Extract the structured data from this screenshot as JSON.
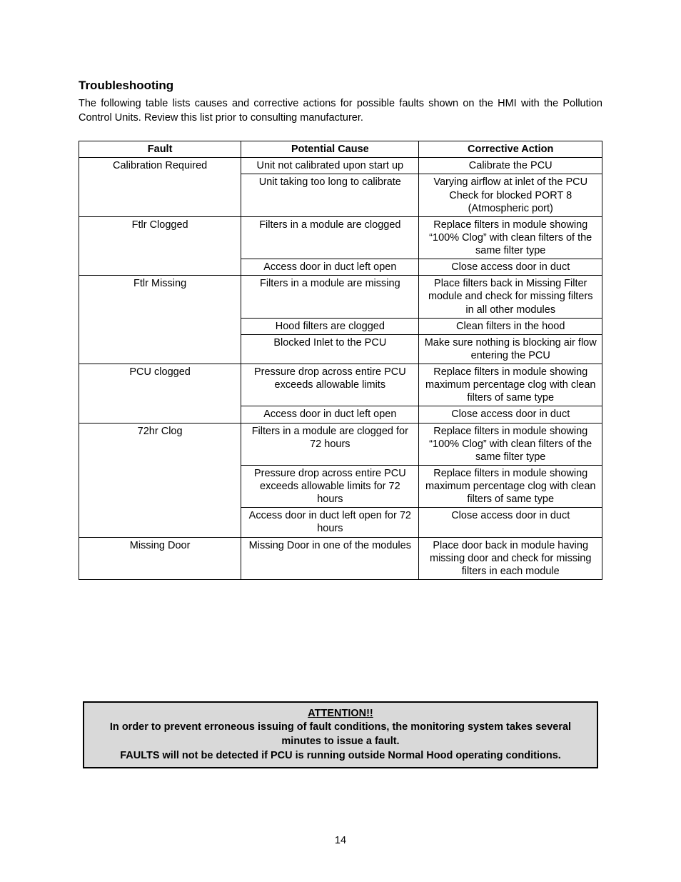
{
  "heading": "Troubleshooting",
  "intro": "The following table lists causes and corrective actions for possible faults shown on the HMI with the Pollution Control Units.  Review this list prior to consulting manufacturer.",
  "table": {
    "headers": {
      "fault": "Fault",
      "cause": "Potential Cause",
      "action": "Corrective Action"
    },
    "rows": [
      {
        "fault": "Calibration Required",
        "fault_rowspan": 2,
        "cause": "Unit not calibrated upon start up",
        "action": "Calibrate the PCU",
        "pad": true
      },
      {
        "cause": "Unit taking too long to calibrate",
        "action": "Varying airflow at inlet of the PCU Check for blocked PORT 8 (Atmospheric port)"
      },
      {
        "fault": "Ftlr Clogged",
        "fault_rowspan": 2,
        "cause": "Filters in a module are clogged",
        "action": "Replace filters in module showing “100% Clog” with clean filters of the same filter type"
      },
      {
        "cause": "Access door in duct left open",
        "action": "Close access door in duct"
      },
      {
        "fault": "Ftlr Missing",
        "fault_rowspan": 3,
        "cause": "Filters in a module are missing",
        "action": "Place filters back in Missing Filter module and check for missing filters in all other modules",
        "pad": true
      },
      {
        "cause": "Hood filters are clogged",
        "action": "Clean filters in the hood",
        "pad": true
      },
      {
        "cause": "Blocked Inlet to the PCU",
        "action": "Make sure nothing is blocking air flow entering the PCU"
      },
      {
        "fault": "PCU clogged",
        "fault_rowspan": 2,
        "cause": "Pressure drop across entire PCU exceeds allowable limits",
        "action": "Replace filters in module showing maximum percentage clog with clean filters of same type"
      },
      {
        "cause": "Access door in duct left open",
        "action": "Close access door in duct"
      },
      {
        "fault": "72hr Clog",
        "fault_rowspan": 3,
        "cause": "Filters in a module are clogged for 72 hours",
        "action": "Replace filters in module showing “100% Clog” with clean filters of the same filter type"
      },
      {
        "cause": "Pressure drop across entire PCU exceeds allowable limits for 72 hours",
        "action": "Replace filters in module showing maximum percentage clog with clean filters of same type"
      },
      {
        "cause": "Access door in duct left open for 72 hours",
        "action": "Close access door in duct"
      },
      {
        "fault": "Missing Door",
        "fault_rowspan": 1,
        "cause": "Missing Door in one of the modules",
        "action": "Place door back in module having missing door and check for missing filters in each module"
      }
    ]
  },
  "attention": {
    "title": "ATTENTION!!",
    "line1": "In order to prevent erroneous issuing of fault conditions, the monitoring system takes several minutes to issue a fault.",
    "line2": "FAULTS will not be detected if PCU is running outside Normal Hood operating conditions."
  },
  "page_number": "14"
}
